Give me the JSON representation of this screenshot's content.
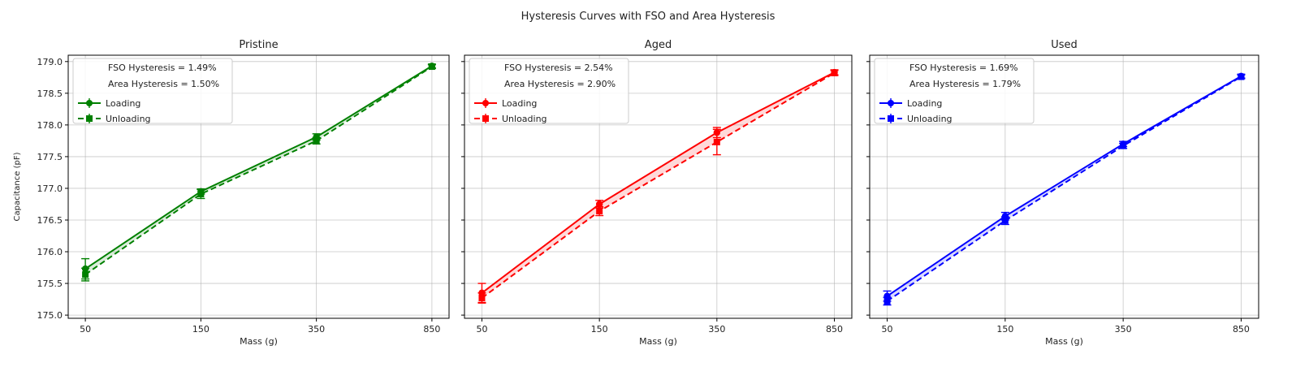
{
  "figure": {
    "title": "Hysteresis Curves with FSO and Area Hysteresis"
  },
  "chart_data": [
    {
      "type": "line",
      "title": "Pristine",
      "xlabel": "Mass (g)",
      "ylabel": "Capacitance (pF)",
      "categories": [
        "50",
        "150",
        "350",
        "850"
      ],
      "ylim": [
        174.95,
        179.1
      ],
      "yticks": [
        175.0,
        175.5,
        176.0,
        176.5,
        177.0,
        177.5,
        178.0,
        178.5,
        179.0
      ],
      "grid": true,
      "legend_position": "top-left",
      "color": "#008000",
      "annotations": [
        "FSO Hysteresis = 1.49%",
        "Area Hysteresis = 1.50%"
      ],
      "series": [
        {
          "name": "Loading",
          "values": [
            175.73,
            176.95,
            177.81,
            178.93
          ],
          "errors": [
            0.16,
            0.04,
            0.05,
            0.03
          ]
        },
        {
          "name": "Unloading",
          "values": [
            175.64,
            176.91,
            177.75,
            178.92
          ],
          "errors": [
            0.1,
            0.07,
            0.05,
            0.03
          ]
        }
      ]
    },
    {
      "type": "line",
      "title": "Aged",
      "xlabel": "Mass (g)",
      "ylabel": "",
      "categories": [
        "50",
        "150",
        "350",
        "850"
      ],
      "ylim": [
        174.95,
        179.1
      ],
      "grid": true,
      "legend_position": "top-left",
      "color": "#ff0000",
      "annotations": [
        "FSO Hysteresis = 2.54%",
        "Area Hysteresis = 2.90%"
      ],
      "series": [
        {
          "name": "Loading",
          "values": [
            175.35,
            176.75,
            177.88,
            178.83
          ],
          "errors": [
            0.15,
            0.06,
            0.08,
            0.04
          ]
        },
        {
          "name": "Unloading",
          "values": [
            175.27,
            176.64,
            177.73,
            178.82
          ],
          "errors": [
            0.08,
            0.07,
            0.2,
            0.04
          ]
        }
      ]
    },
    {
      "type": "line",
      "title": "Used",
      "xlabel": "Mass (g)",
      "ylabel": "",
      "categories": [
        "50",
        "150",
        "350",
        "850"
      ],
      "ylim": [
        174.95,
        179.1
      ],
      "grid": true,
      "legend_position": "top-left",
      "color": "#0000ff",
      "annotations": [
        "FSO Hysteresis = 1.69%",
        "Area Hysteresis = 1.79%"
      ],
      "series": [
        {
          "name": "Loading",
          "values": [
            175.3,
            176.56,
            177.7,
            178.77
          ],
          "errors": [
            0.08,
            0.06,
            0.04,
            0.03
          ]
        },
        {
          "name": "Unloading",
          "values": [
            175.22,
            176.49,
            177.67,
            178.76
          ],
          "errors": [
            0.06,
            0.06,
            0.04,
            0.03
          ]
        }
      ]
    }
  ]
}
